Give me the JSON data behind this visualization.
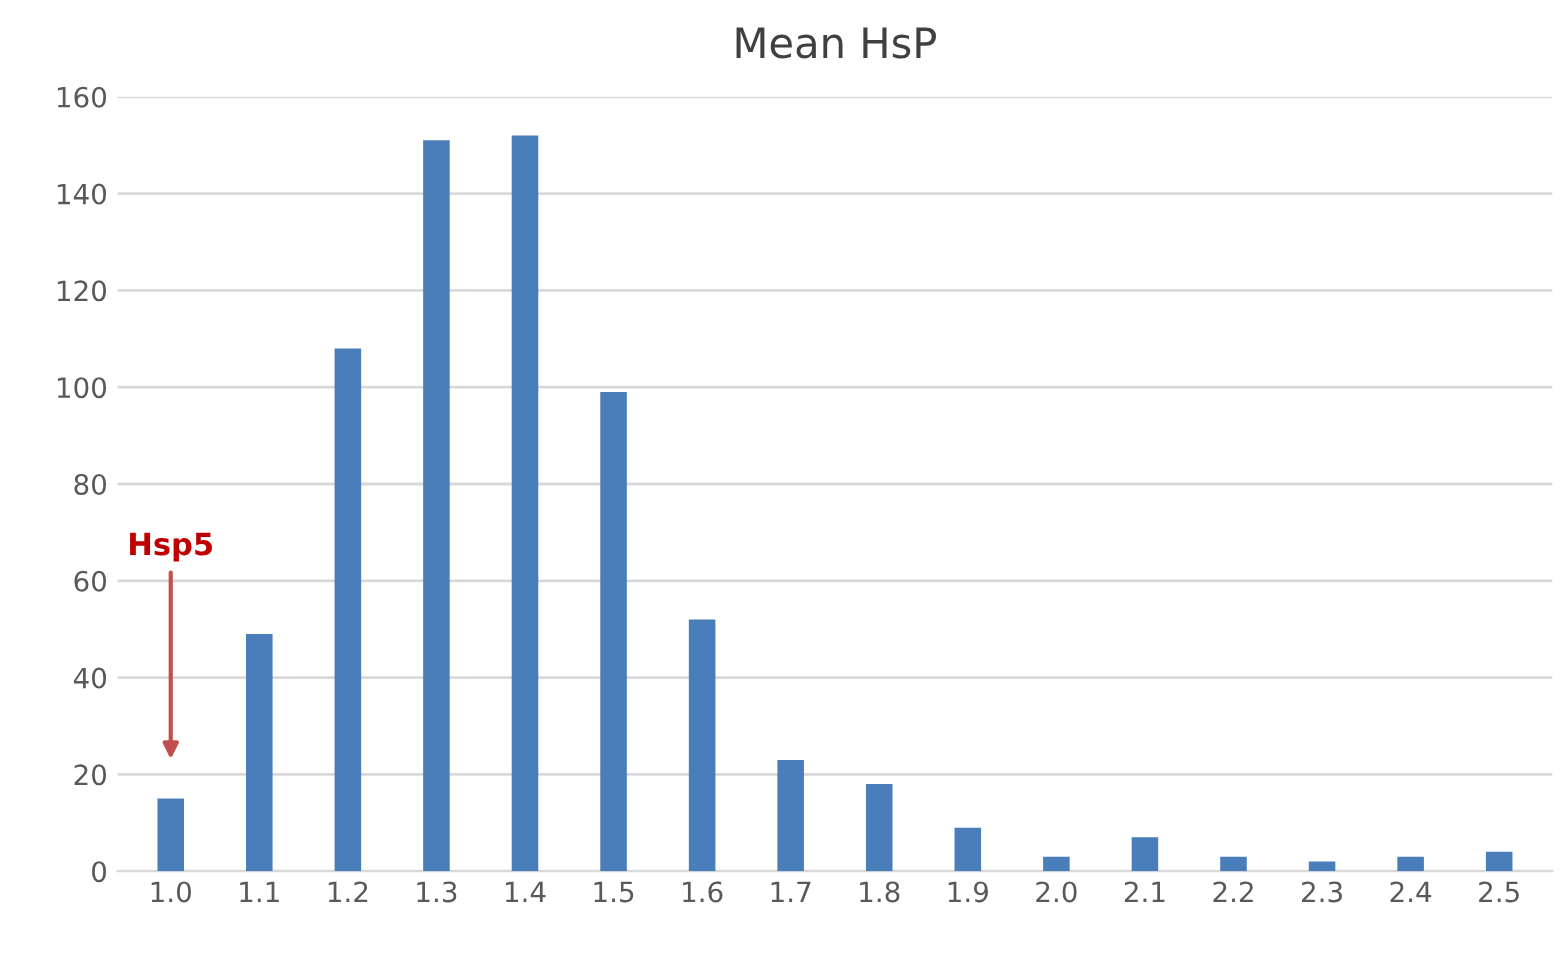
{
  "chart_data": {
    "type": "bar",
    "title": "Mean HsP",
    "categories": [
      "1.0",
      "1.1",
      "1.2",
      "1.3",
      "1.4",
      "1.5",
      "1.6",
      "1.7",
      "1.8",
      "1.9",
      "2.0",
      "2.1",
      "2.2",
      "2.3",
      "2.4",
      "2.5"
    ],
    "values": [
      15,
      49,
      108,
      151,
      152,
      99,
      52,
      23,
      18,
      9,
      3,
      7,
      3,
      2,
      3,
      4
    ],
    "color": "#4a7ebb",
    "ylim": [
      0,
      160
    ],
    "yticks": [
      0,
      20,
      40,
      60,
      80,
      100,
      120,
      140,
      160
    ],
    "grid": "y",
    "annotations": [
      "Hsp5"
    ]
  }
}
